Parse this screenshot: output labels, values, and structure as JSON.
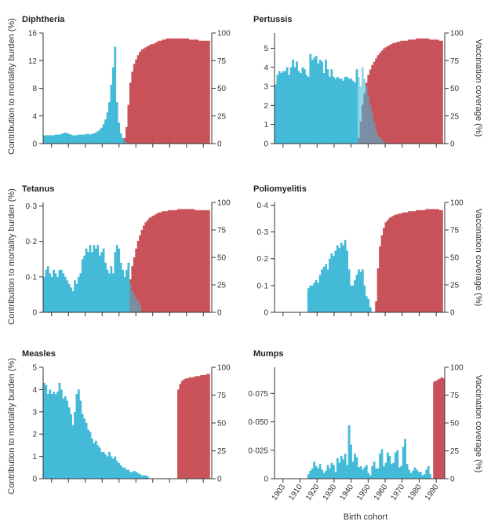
{
  "y_left_label": "Contribution to mortality burden (%)",
  "y_right_label": "Vaccination coverage (%)",
  "x_axis_label": "Birth cohort",
  "x_tick_labels": [
    "1903",
    "1910",
    "1920",
    "1930",
    "1940",
    "1950",
    "1960",
    "1970",
    "1980",
    "1990"
  ],
  "colors": {
    "burden": "#42bad8",
    "coverage": "#c9525a"
  },
  "chart_data": [
    {
      "type": "bar",
      "title": "Diphtheria",
      "x": {
        "start": 1903,
        "end": 1990
      },
      "ylim": [
        0,
        16
      ],
      "yticks": [
        0,
        4,
        8,
        12,
        16
      ],
      "y2lim": [
        0,
        100
      ],
      "y2ticks": [
        0,
        25,
        50,
        75,
        100
      ],
      "burden": [
        1.2,
        1.2,
        1.2,
        1.2,
        1.2,
        1.2,
        1.3,
        1.3,
        1.3,
        1.4,
        1.5,
        1.6,
        1.5,
        1.4,
        1.3,
        1.2,
        1.2,
        1.2,
        1.3,
        1.3,
        1.3,
        1.3,
        1.4,
        1.4,
        1.3,
        1.4,
        1.5,
        1.6,
        1.8,
        2.0,
        2.3,
        2.8,
        3.5,
        4.5,
        6.0,
        8.5,
        11.0,
        14.0,
        6.0,
        3.0,
        1.5,
        0.8,
        0.4,
        0.2,
        0.1
      ],
      "coverage_start": 1945,
      "coverage": [
        5,
        15,
        35,
        55,
        65,
        72,
        76,
        80,
        83,
        85,
        86,
        87,
        88,
        89,
        90,
        90,
        91,
        92,
        93,
        93,
        94,
        94,
        95,
        95,
        95,
        95,
        95,
        95,
        95,
        95,
        95,
        95,
        95,
        95,
        94,
        94,
        94,
        94,
        94,
        93,
        93,
        93,
        93,
        93,
        93
      ],
      "legend": "none",
      "grid": false
    },
    {
      "type": "bar",
      "title": "Pertussis",
      "x": {
        "start": 1903,
        "end": 1990
      },
      "ylim": [
        0,
        5.8
      ],
      "yticks": [
        0,
        1,
        2,
        3,
        4,
        5
      ],
      "y2lim": [
        0,
        100
      ],
      "y2ticks": [
        0,
        25,
        50,
        75,
        100
      ],
      "burden": [
        3.1,
        3.6,
        3.8,
        3.7,
        3.8,
        3.8,
        4.0,
        3.6,
        4.0,
        4.4,
        4.0,
        4.3,
        3.8,
        3.7,
        4.0,
        3.9,
        3.6,
        3.5,
        4.7,
        4.4,
        4.5,
        4.6,
        4.2,
        4.4,
        4.3,
        3.7,
        4.4,
        3.9,
        3.5,
        3.9,
        3.5,
        3.4,
        3.5,
        3.4,
        3.4,
        3.3,
        3.5,
        3.5,
        3.4,
        3.4,
        3.3,
        3.2,
        3.9,
        3.5,
        3.0,
        4.0,
        3.4,
        3.0,
        2.5,
        2.0,
        1.6,
        1.1,
        0.7,
        0.4,
        0.3,
        0.2,
        0.1,
        0.05
      ],
      "coverage_start": 1946,
      "coverage": [
        5,
        20,
        35,
        45,
        55,
        62,
        67,
        71,
        74,
        77,
        80,
        82,
        84,
        86,
        87,
        88,
        89,
        90,
        91,
        91,
        92,
        92,
        93,
        93,
        93,
        93,
        94,
        94,
        94,
        94,
        95,
        95,
        95,
        95,
        95,
        95,
        95,
        94,
        94,
        94,
        94,
        94,
        93,
        93
      ],
      "legend": "none",
      "grid": false
    },
    {
      "type": "bar",
      "title": "Tetanus",
      "x": {
        "start": 1903,
        "end": 1990
      },
      "ylim": [
        0,
        0.31
      ],
      "yticks": [
        0,
        0.1,
        0.2,
        0.3
      ],
      "ytick_labels": [
        "0",
        "0·1",
        "0·2",
        "0·3"
      ],
      "y2lim": [
        0,
        100
      ],
      "y2ticks": [
        0,
        25,
        50,
        75,
        100
      ],
      "burden": [
        0.1,
        0.12,
        0.13,
        0.11,
        0.1,
        0.12,
        0.11,
        0.1,
        0.12,
        0.12,
        0.11,
        0.1,
        0.09,
        0.08,
        0.07,
        0.06,
        0.09,
        0.08,
        0.1,
        0.11,
        0.15,
        0.16,
        0.18,
        0.17,
        0.19,
        0.17,
        0.19,
        0.18,
        0.19,
        0.16,
        0.17,
        0.18,
        0.14,
        0.12,
        0.11,
        0.13,
        0.11,
        0.17,
        0.19,
        0.18,
        0.14,
        0.12,
        0.1,
        0.12,
        0.14,
        0.08,
        0.06,
        0.05,
        0.04,
        0.03,
        0.02
      ],
      "coverage_start": 1948,
      "coverage": [
        30,
        42,
        50,
        58,
        65,
        70,
        75,
        79,
        82,
        84,
        86,
        87,
        88,
        89,
        90,
        91,
        91,
        92,
        92,
        92,
        93,
        93,
        93,
        93,
        93,
        94,
        94,
        94,
        94,
        94,
        94,
        94,
        94,
        94,
        93,
        93,
        93,
        93,
        93,
        93,
        93,
        93
      ],
      "legend": "none",
      "grid": false
    },
    {
      "type": "bar",
      "title": "Poliomyelitis",
      "x": {
        "start": 1903,
        "end": 1990
      },
      "ylim": [
        0,
        0.41
      ],
      "yticks": [
        0,
        0.1,
        0.2,
        0.3,
        0.4
      ],
      "ytick_labels": [
        "0",
        "0·1",
        "0·2",
        "0·3",
        "0·4"
      ],
      "y2lim": [
        0,
        100
      ],
      "y2ticks": [
        0,
        25,
        50,
        75,
        100
      ],
      "burden": [
        0,
        0,
        0,
        0,
        0,
        0,
        0,
        0,
        0,
        0,
        0,
        0,
        0,
        0,
        0,
        0,
        0,
        0.09,
        0.1,
        0.1,
        0.11,
        0.12,
        0.11,
        0.14,
        0.16,
        0.17,
        0.18,
        0.16,
        0.2,
        0.22,
        0.21,
        0.23,
        0.25,
        0.24,
        0.26,
        0.25,
        0.27,
        0.23,
        0.16,
        0.1,
        0.1,
        0.12,
        0.14,
        0.16,
        0.15,
        0.16,
        0.1,
        0.06,
        0.05,
        0.02
      ],
      "coverage_start": 1955,
      "coverage": [
        10,
        40,
        60,
        70,
        77,
        82,
        84,
        86,
        87,
        88,
        89,
        89,
        90,
        90,
        91,
        91,
        91,
        92,
        92,
        92,
        92,
        93,
        93,
        93,
        93,
        93,
        94,
        94,
        94,
        94,
        94,
        94,
        94,
        93,
        93
      ],
      "legend": "none",
      "grid": false
    },
    {
      "type": "bar",
      "title": "Measles",
      "x": {
        "start": 1903,
        "end": 1990
      },
      "ylim": [
        0,
        5
      ],
      "yticks": [
        0,
        1,
        2,
        3,
        4,
        5
      ],
      "y2lim": [
        0,
        100
      ],
      "y2ticks": [
        0,
        25,
        50,
        75,
        100
      ],
      "burden": [
        4.3,
        4.2,
        3.8,
        4.0,
        3.8,
        3.9,
        3.8,
        3.9,
        4.3,
        4.0,
        3.6,
        3.7,
        3.5,
        3.2,
        2.9,
        2.4,
        3.0,
        3.8,
        4.0,
        3.5,
        2.9,
        2.7,
        2.5,
        2.2,
        2.1,
        1.8,
        1.6,
        1.7,
        1.5,
        1.4,
        1.2,
        1.2,
        1.1,
        1.0,
        1.2,
        1.0,
        0.9,
        1.0,
        0.8,
        0.7,
        0.6,
        0.5,
        0.5,
        0.4,
        0.4,
        0.3,
        0.3,
        0.35,
        0.3,
        0.25,
        0.2,
        0.15,
        0.15,
        0.15,
        0.1
      ],
      "coverage_start": 1973,
      "coverage": [
        80,
        85,
        88,
        89,
        90,
        90,
        91,
        91,
        91,
        92,
        92,
        92,
        93,
        93,
        93,
        94,
        94
      ],
      "legend": "none",
      "grid": false
    },
    {
      "type": "bar",
      "title": "Mumps",
      "x": {
        "start": 1903,
        "end": 1990
      },
      "ylim": [
        0,
        0.098
      ],
      "yticks": [
        0,
        0.025,
        0.05,
        0.075
      ],
      "ytick_labels": [
        "0",
        "0·025",
        "0·050",
        "0·075"
      ],
      "y2lim": [
        0,
        100
      ],
      "y2ticks": [
        0,
        25,
        50,
        75,
        100
      ],
      "burden": [
        0,
        0,
        0,
        0,
        0,
        0,
        0,
        0,
        0,
        0,
        0,
        0,
        0,
        0,
        0,
        0,
        0,
        0.004,
        0.007,
        0.009,
        0.015,
        0.011,
        0.009,
        0.013,
        0.008,
        0.005,
        0.007,
        0.012,
        0.009,
        0.014,
        0.012,
        0.006,
        0.018,
        0.014,
        0.02,
        0.017,
        0.022,
        0.012,
        0.047,
        0.03,
        0.015,
        0.022,
        0.019,
        0.01,
        0.011,
        0.008,
        0.01,
        0.012,
        0.005,
        0.003,
        0.011,
        0.015,
        0.009,
        0.009,
        0.022,
        0.026,
        0.011,
        0.014,
        0.023,
        0.02,
        0.013,
        0.014,
        0.023,
        0.025,
        0.01,
        0.011,
        0.028,
        0.035,
        0.013,
        0.008,
        0.005,
        0.007,
        0.01,
        0.008,
        0.006,
        0.006,
        0.003,
        0.004,
        0.008,
        0.011,
        0.004
      ],
      "coverage_start": 1985,
      "coverage": [
        87,
        88,
        89,
        90,
        91,
        90
      ],
      "legend": "none",
      "grid": false
    }
  ]
}
